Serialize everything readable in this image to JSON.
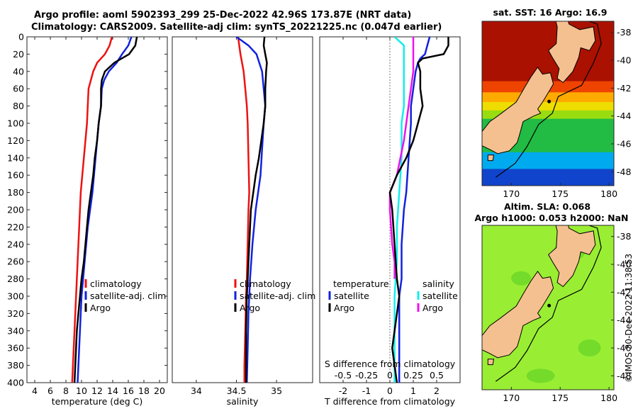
{
  "header": {
    "title_line1": "Argo profile: aoml 5902393_299 25-Dec-2022 42.96S 173.87E (NRT data)",
    "title_line2": "Climatology: CARS2009. Satellite-adj clim: synTS_20221225.nc (0.047d earlier)"
  },
  "credit": "©IMOS 30-Dec-2022 11:38:53",
  "colors": {
    "climatology": "#ee1111",
    "satellite_adj": "#1122dd",
    "argo": "#000000",
    "salinity_satellite": "#11eeee",
    "salinity_argo": "#ee11ee",
    "land": "#f5c08f",
    "zero_line": "#777777"
  },
  "chart_data": [
    {
      "id": "temperature-profile",
      "type": "line",
      "xlabel": "temperature (deg C)",
      "ylabel": "",
      "xlim": [
        3,
        21
      ],
      "ylim": [
        0,
        400
      ],
      "y_reversed": true,
      "xticks": [
        4,
        6,
        8,
        10,
        12,
        14,
        16,
        18,
        20
      ],
      "yticks": [
        0,
        20,
        40,
        60,
        80,
        100,
        120,
        140,
        160,
        180,
        200,
        220,
        240,
        260,
        280,
        300,
        320,
        340,
        360,
        380,
        400
      ],
      "legend": [
        "climatology",
        "satellite-adj. clim",
        "Argo"
      ],
      "series": [
        {
          "name": "climatology",
          "color": "#ee1111",
          "points": [
            [
              13.9,
              0
            ],
            [
              13.6,
              10
            ],
            [
              13.0,
              20
            ],
            [
              12.0,
              30
            ],
            [
              11.5,
              40
            ],
            [
              11.2,
              50
            ],
            [
              10.9,
              60
            ],
            [
              10.8,
              80
            ],
            [
              10.7,
              100
            ],
            [
              10.5,
              120
            ],
            [
              10.3,
              140
            ],
            [
              10.1,
              160
            ],
            [
              9.9,
              180
            ],
            [
              9.8,
              200
            ],
            [
              9.7,
              220
            ],
            [
              9.6,
              240
            ],
            [
              9.5,
              260
            ],
            [
              9.4,
              280
            ],
            [
              9.3,
              300
            ],
            [
              9.2,
              320
            ],
            [
              9.1,
              340
            ],
            [
              9.0,
              360
            ],
            [
              8.9,
              380
            ],
            [
              8.8,
              400
            ]
          ]
        },
        {
          "name": "satellite-adj. clim",
          "color": "#1122dd",
          "points": [
            [
              16.4,
              0
            ],
            [
              16.0,
              10
            ],
            [
              15.2,
              20
            ],
            [
              14.5,
              30
            ],
            [
              13.5,
              40
            ],
            [
              12.9,
              50
            ],
            [
              12.6,
              60
            ],
            [
              12.5,
              80
            ],
            [
              12.2,
              100
            ],
            [
              12.0,
              120
            ],
            [
              11.8,
              140
            ],
            [
              11.6,
              160
            ],
            [
              11.4,
              180
            ],
            [
              11.1,
              200
            ],
            [
              10.8,
              220
            ],
            [
              10.6,
              240
            ],
            [
              10.4,
              260
            ],
            [
              10.2,
              280
            ],
            [
              10.0,
              300
            ],
            [
              9.9,
              320
            ],
            [
              9.8,
              340
            ],
            [
              9.7,
              360
            ],
            [
              9.6,
              380
            ],
            [
              9.5,
              400
            ]
          ]
        },
        {
          "name": "Argo",
          "color": "#000000",
          "points": [
            [
              17.1,
              0
            ],
            [
              16.9,
              10
            ],
            [
              16.1,
              20
            ],
            [
              14.2,
              30
            ],
            [
              13.0,
              40
            ],
            [
              12.6,
              50
            ],
            [
              12.5,
              60
            ],
            [
              12.5,
              80
            ],
            [
              12.2,
              100
            ],
            [
              12.0,
              120
            ],
            [
              11.7,
              140
            ],
            [
              11.5,
              160
            ],
            [
              11.2,
              180
            ],
            [
              10.9,
              200
            ],
            [
              10.7,
              220
            ],
            [
              10.5,
              240
            ],
            [
              10.3,
              260
            ],
            [
              10.0,
              280
            ],
            [
              9.8,
              300
            ],
            [
              9.6,
              320
            ],
            [
              9.4,
              340
            ],
            [
              9.3,
              360
            ],
            [
              9.2,
              380
            ],
            [
              9.1,
              400
            ]
          ]
        }
      ]
    },
    {
      "id": "salinity-profile",
      "type": "line",
      "xlabel": "salinity",
      "ylabel": "",
      "xlim": [
        33.7,
        35.45
      ],
      "ylim": [
        0,
        400
      ],
      "y_reversed": true,
      "xticks": [
        34,
        34.5,
        35
      ],
      "legend": [
        "climatology",
        "satellite-adj. clim",
        "Argo"
      ],
      "series": [
        {
          "name": "climatology",
          "color": "#ee1111",
          "points": [
            [
              34.52,
              0
            ],
            [
              34.55,
              20
            ],
            [
              34.59,
              40
            ],
            [
              34.61,
              60
            ],
            [
              34.63,
              80
            ],
            [
              34.64,
              100
            ],
            [
              34.65,
              140
            ],
            [
              34.66,
              180
            ],
            [
              34.65,
              200
            ],
            [
              34.64,
              240
            ],
            [
              34.63,
              280
            ],
            [
              34.62,
              300
            ],
            [
              34.61,
              340
            ],
            [
              34.6,
              380
            ],
            [
              34.6,
              400
            ]
          ]
        },
        {
          "name": "satellite-adj. clim",
          "color": "#1122dd",
          "points": [
            [
              34.5,
              0
            ],
            [
              34.65,
              10
            ],
            [
              34.75,
              20
            ],
            [
              34.82,
              40
            ],
            [
              34.84,
              60
            ],
            [
              34.86,
              80
            ],
            [
              34.84,
              100
            ],
            [
              34.82,
              130
            ],
            [
              34.8,
              160
            ],
            [
              34.77,
              180
            ],
            [
              34.74,
              200
            ],
            [
              34.7,
              240
            ],
            [
              34.67,
              280
            ],
            [
              34.65,
              320
            ],
            [
              34.64,
              360
            ],
            [
              34.63,
              400
            ]
          ]
        },
        {
          "name": "Argo",
          "color": "#000000",
          "points": [
            [
              34.85,
              0
            ],
            [
              34.84,
              10
            ],
            [
              34.86,
              20
            ],
            [
              34.88,
              30
            ],
            [
              34.87,
              40
            ],
            [
              34.86,
              60
            ],
            [
              34.86,
              80
            ],
            [
              34.84,
              100
            ],
            [
              34.81,
              120
            ],
            [
              34.78,
              140
            ],
            [
              34.74,
              160
            ],
            [
              34.71,
              180
            ],
            [
              34.68,
              200
            ],
            [
              34.66,
              240
            ],
            [
              34.64,
              280
            ],
            [
              34.63,
              300
            ],
            [
              34.62,
              340
            ],
            [
              34.62,
              400
            ]
          ]
        }
      ]
    },
    {
      "id": "difference-profile",
      "type": "line",
      "xlabel": "T difference from climatology",
      "top_axis_label": "S difference from climatology",
      "ylabel": "",
      "xlim": [
        -3,
        3
      ],
      "ylim": [
        0,
        400
      ],
      "y_reversed": true,
      "xticks": [
        -2,
        -1,
        0,
        1,
        2
      ],
      "top_xticks": [
        "-0.5",
        "-0.25",
        "0",
        "0.25",
        "0.5"
      ],
      "legend_left_title": "temperature",
      "legend_right_title": "salinity",
      "legend_left": [
        "satellite",
        "Argo"
      ],
      "legend_right": [
        "satellite",
        "Argo"
      ],
      "series": [
        {
          "name": "temperature satellite",
          "color": "#1122dd",
          "points": [
            [
              1.7,
              0
            ],
            [
              1.6,
              10
            ],
            [
              1.5,
              20
            ],
            [
              1.3,
              25
            ],
            [
              1.2,
              30
            ],
            [
              1.1,
              40
            ],
            [
              1.0,
              60
            ],
            [
              0.9,
              80
            ],
            [
              0.9,
              100
            ],
            [
              0.8,
              140
            ],
            [
              0.7,
              180
            ],
            [
              0.6,
              200
            ],
            [
              0.5,
              240
            ],
            [
              0.5,
              280
            ],
            [
              0.4,
              300
            ],
            [
              0.4,
              340
            ],
            [
              0.4,
              380
            ],
            [
              0.4,
              400
            ]
          ]
        },
        {
          "name": "temperature Argo",
          "color": "#000000",
          "points": [
            [
              2.5,
              0
            ],
            [
              2.5,
              10
            ],
            [
              2.3,
              20
            ],
            [
              1.4,
              25
            ],
            [
              1.2,
              30
            ],
            [
              1.3,
              40
            ],
            [
              1.3,
              60
            ],
            [
              1.4,
              80
            ],
            [
              1.2,
              100
            ],
            [
              1.0,
              120
            ],
            [
              0.7,
              140
            ],
            [
              0.3,
              160
            ],
            [
              0.0,
              180
            ],
            [
              0.1,
              200
            ],
            [
              0.2,
              240
            ],
            [
              0.3,
              280
            ],
            [
              0.4,
              300
            ],
            [
              0.3,
              320
            ],
            [
              0.2,
              340
            ],
            [
              0.1,
              360
            ],
            [
              0.2,
              380
            ],
            [
              0.3,
              400
            ]
          ]
        },
        {
          "name": "salinity satellite",
          "color": "#11eeee",
          "points": [
            [
              0.2,
              0
            ],
            [
              0.6,
              10
            ],
            [
              0.6,
              20
            ],
            [
              0.6,
              40
            ],
            [
              0.6,
              60
            ],
            [
              0.6,
              80
            ],
            [
              0.5,
              100
            ],
            [
              0.5,
              140
            ],
            [
              0.4,
              180
            ],
            [
              0.3,
              220
            ],
            [
              0.3,
              260
            ],
            [
              0.2,
              300
            ],
            [
              0.2,
              340
            ],
            [
              0.2,
              400
            ]
          ]
        },
        {
          "name": "salinity Argo",
          "color": "#ee11ee",
          "points": [
            [
              1.0,
              0
            ],
            [
              1.0,
              10
            ],
            [
              1.0,
              20
            ],
            [
              1.0,
              40
            ],
            [
              0.8,
              80
            ],
            [
              0.6,
              120
            ],
            [
              0.3,
              160
            ],
            [
              0.0,
              180
            ],
            [
              0.0,
              200
            ],
            [
              0.1,
              240
            ],
            [
              0.2,
              260
            ],
            [
              0.2,
              280
            ]
          ]
        }
      ]
    },
    {
      "id": "sst-map",
      "type": "heatmap",
      "title": "sat. SST: 16 Argo: 16.9",
      "xlim": [
        167,
        180.5
      ],
      "ylim": [
        -49,
        -37.2
      ],
      "xticks": [
        170,
        175,
        180
      ],
      "yticks": [
        -38,
        -40,
        -42,
        -44,
        -46,
        -48
      ],
      "color_bands": [
        {
          "lat_top": -37.2,
          "lat_bottom": -41.5,
          "color": "#aa1100"
        },
        {
          "lat_top": -41.5,
          "lat_bottom": -42.3,
          "color": "#ee4400"
        },
        {
          "lat_top": -42.3,
          "lat_bottom": -43.0,
          "color": "#ffaa00"
        },
        {
          "lat_top": -43.0,
          "lat_bottom": -43.6,
          "color": "#eedd00"
        },
        {
          "lat_top": -43.6,
          "lat_bottom": -44.2,
          "color": "#99dd11"
        },
        {
          "lat_top": -44.2,
          "lat_bottom": -46.6,
          "color": "#22bb44"
        },
        {
          "lat_top": -46.6,
          "lat_bottom": -47.8,
          "color": "#00aaee"
        },
        {
          "lat_top": -47.8,
          "lat_bottom": -49.0,
          "color": "#1144cc"
        }
      ]
    },
    {
      "id": "sla-map",
      "type": "heatmap",
      "title_line1": "Altim. SLA: 0.068",
      "title_line2": "Argo h1000: 0.053 h2000: NaN",
      "xlim": [
        167,
        180.5
      ],
      "ylim": [
        -49,
        -37.2
      ],
      "xticks": [
        170,
        175,
        180
      ],
      "yticks": [
        -38,
        -40,
        -42,
        -44,
        -46,
        -48
      ],
      "background_color": "#99ee33"
    }
  ]
}
